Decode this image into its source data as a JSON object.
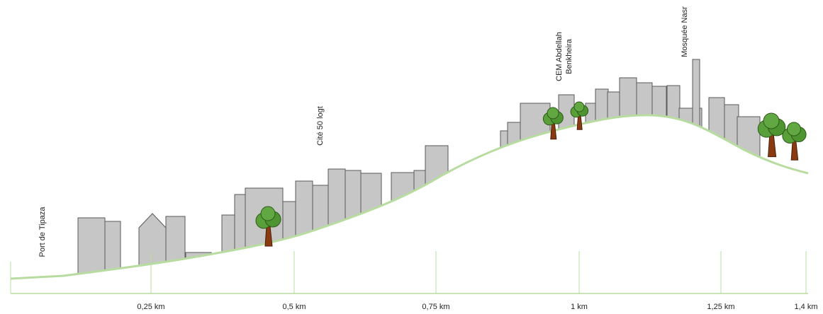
{
  "labels": {
    "port": "Port de Tipaza",
    "cite": "Cité 50 logt",
    "cem": [
      "CEM Abdellah",
      "Benkheira"
    ],
    "mosque": "Mosquée Nasr"
  },
  "axis": {
    "ticks": [
      "0,25 km",
      "0,5 km",
      "0,75 km",
      "1 km",
      "1,25 km",
      "1,4 km"
    ]
  }
}
